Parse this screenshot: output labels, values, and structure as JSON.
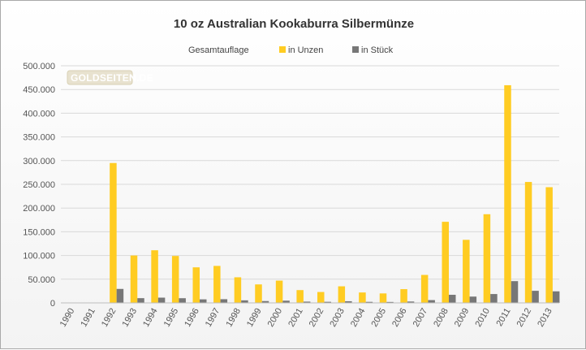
{
  "chart_data": {
    "type": "bar",
    "title": "10 oz Australian Kookaburra Silbermünze",
    "xlabel": "",
    "ylabel": "",
    "legend_title": "Gesamtauflage",
    "legend_position": "top-center",
    "grid": true,
    "ylim": [
      0,
      500000
    ],
    "y_ticks": [
      "0",
      "50.000",
      "100.000",
      "150.000",
      "200.000",
      "250.000",
      "300.000",
      "350.000",
      "400.000",
      "450.000",
      "500.000"
    ],
    "categories": [
      "1990",
      "1991",
      "1992",
      "1993",
      "1994",
      "1995",
      "1996",
      "1997",
      "1998",
      "1999",
      "2000",
      "2001",
      "2002",
      "2003",
      "2004",
      "2005",
      "2006",
      "2007",
      "2008",
      "2009",
      "2010",
      "2011",
      "2012",
      "2013"
    ],
    "series": [
      {
        "name": "in Unzen",
        "color": "#ffcc22",
        "values": [
          0,
          0,
          295000,
          100000,
          111000,
          99000,
          75000,
          78000,
          54000,
          39000,
          47000,
          27000,
          23000,
          35000,
          22000,
          20000,
          29000,
          59000,
          171000,
          133000,
          187000,
          459000,
          255000,
          244000
        ]
      },
      {
        "name": "in Stück",
        "color": "#777777",
        "values": [
          0,
          0,
          29500,
          10000,
          11100,
          9900,
          7500,
          7800,
          5400,
          3900,
          4700,
          2700,
          2300,
          3500,
          2200,
          2000,
          2900,
          5900,
          17100,
          13300,
          18700,
          45900,
          25500,
          24400
        ]
      }
    ]
  },
  "watermark": "GOLDSEITEN.DE"
}
